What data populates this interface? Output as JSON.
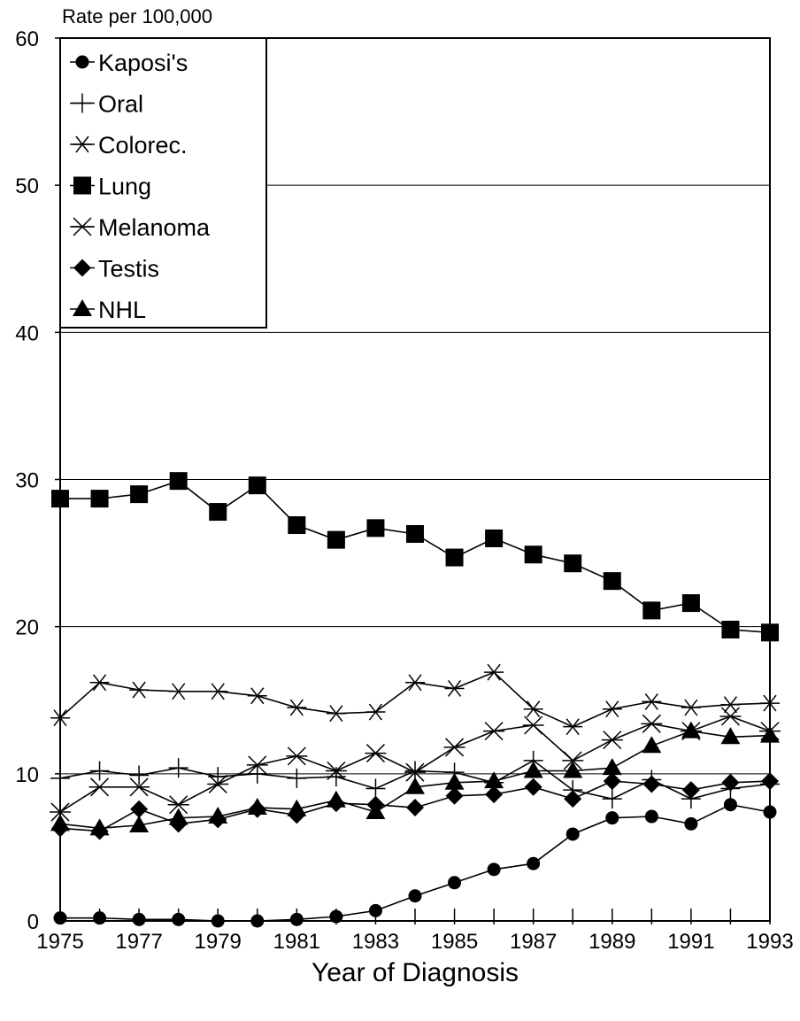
{
  "chart_data": {
    "type": "line",
    "ylabel": "Rate per 100,000",
    "xlabel": "Year of Diagnosis",
    "ylim": [
      0,
      60
    ],
    "xlim": [
      1975,
      1993
    ],
    "y_ticks": [
      "0",
      "10",
      "20",
      "30",
      "40",
      "50",
      "60"
    ],
    "x_tick_labels": [
      "1975",
      "1977",
      "1979",
      "1981",
      "1983",
      "1985",
      "1987",
      "1989",
      "1991",
      "1993"
    ],
    "x": [
      1975,
      1976,
      1977,
      1978,
      1979,
      1980,
      1981,
      1982,
      1983,
      1984,
      1985,
      1986,
      1987,
      1988,
      1989,
      1990,
      1991,
      1992,
      1993
    ],
    "grid": "horizontal",
    "legend_position": "top-left",
    "series": [
      {
        "name": "Kaposi's",
        "marker": "circle",
        "values": [
          0.2,
          0.2,
          0.1,
          0.1,
          0.0,
          0.0,
          0.1,
          0.3,
          0.7,
          1.7,
          2.6,
          3.5,
          3.9,
          5.9,
          7.0,
          7.1,
          6.6,
          7.9,
          7.4
        ]
      },
      {
        "name": "Oral",
        "marker": "plus",
        "values": [
          9.7,
          10.2,
          9.9,
          10.4,
          9.8,
          10.0,
          9.7,
          9.8,
          9.0,
          10.2,
          10.1,
          9.4,
          10.9,
          8.9,
          8.3,
          9.6,
          8.3,
          9.0,
          9.3
        ]
      },
      {
        "name": "Colorec.",
        "marker": "asterisk",
        "values": [
          13.8,
          16.2,
          15.7,
          15.6,
          15.6,
          15.3,
          14.5,
          14.1,
          14.2,
          16.2,
          15.8,
          16.9,
          14.4,
          13.2,
          14.4,
          14.9,
          14.5,
          14.7,
          14.8
        ]
      },
      {
        "name": "Lung",
        "marker": "square",
        "values": [
          28.7,
          28.7,
          29.0,
          29.9,
          27.8,
          29.6,
          26.9,
          25.9,
          26.7,
          26.3,
          24.7,
          26.0,
          24.9,
          24.3,
          23.1,
          21.1,
          21.6,
          19.8,
          19.6
        ]
      },
      {
        "name": "Melanoma",
        "marker": "star",
        "values": [
          7.4,
          9.1,
          9.1,
          7.9,
          9.3,
          10.6,
          11.2,
          10.2,
          11.4,
          10.1,
          11.8,
          12.9,
          13.3,
          10.9,
          12.3,
          13.4,
          12.9,
          13.9,
          12.9
        ]
      },
      {
        "name": "Testis",
        "marker": "diamond",
        "values": [
          6.3,
          6.1,
          7.6,
          6.6,
          6.9,
          7.6,
          7.2,
          8.0,
          7.9,
          7.7,
          8.5,
          8.6,
          9.1,
          8.3,
          9.5,
          9.3,
          8.9,
          9.4,
          9.5
        ]
      },
      {
        "name": "NHL",
        "marker": "triangle",
        "values": [
          6.6,
          6.3,
          6.5,
          7.0,
          7.1,
          7.7,
          7.6,
          8.2,
          7.4,
          9.1,
          9.4,
          9.5,
          10.2,
          10.2,
          10.4,
          11.9,
          12.9,
          12.5,
          12.6
        ]
      }
    ]
  }
}
